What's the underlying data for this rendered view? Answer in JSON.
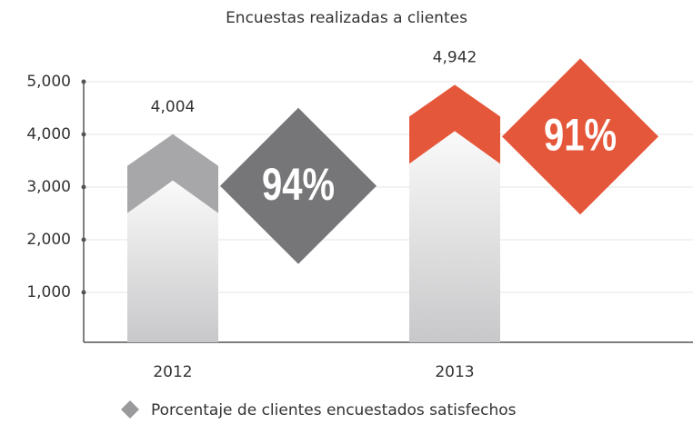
{
  "chart_data": {
    "type": "arrow-bar",
    "title": "Encuestas realizadas a clientes",
    "categories": [
      "2012",
      "2013"
    ],
    "values": [
      4004,
      4942
    ],
    "value_labels": [
      "4,004",
      "4,942"
    ],
    "colors": [
      "#a7a7a9",
      "#e5573a"
    ],
    "ylim": [
      0,
      5000
    ],
    "yticks": [
      {
        "value": 1000,
        "label": "1,000"
      },
      {
        "value": 2000,
        "label": "2,000"
      },
      {
        "value": 3000,
        "label": "3,000"
      },
      {
        "value": 4000,
        "label": "4,000"
      },
      {
        "value": 5000,
        "label": "5,000"
      }
    ],
    "grid": true,
    "percentages": {
      "name": "Porcentaje de clientes encuestados satisfechos",
      "values": [
        94,
        91
      ],
      "value_labels": [
        "94%",
        "91%"
      ],
      "colors": [
        "#767678",
        "#e5573a"
      ],
      "legend_color": "#9a9a9c"
    }
  }
}
